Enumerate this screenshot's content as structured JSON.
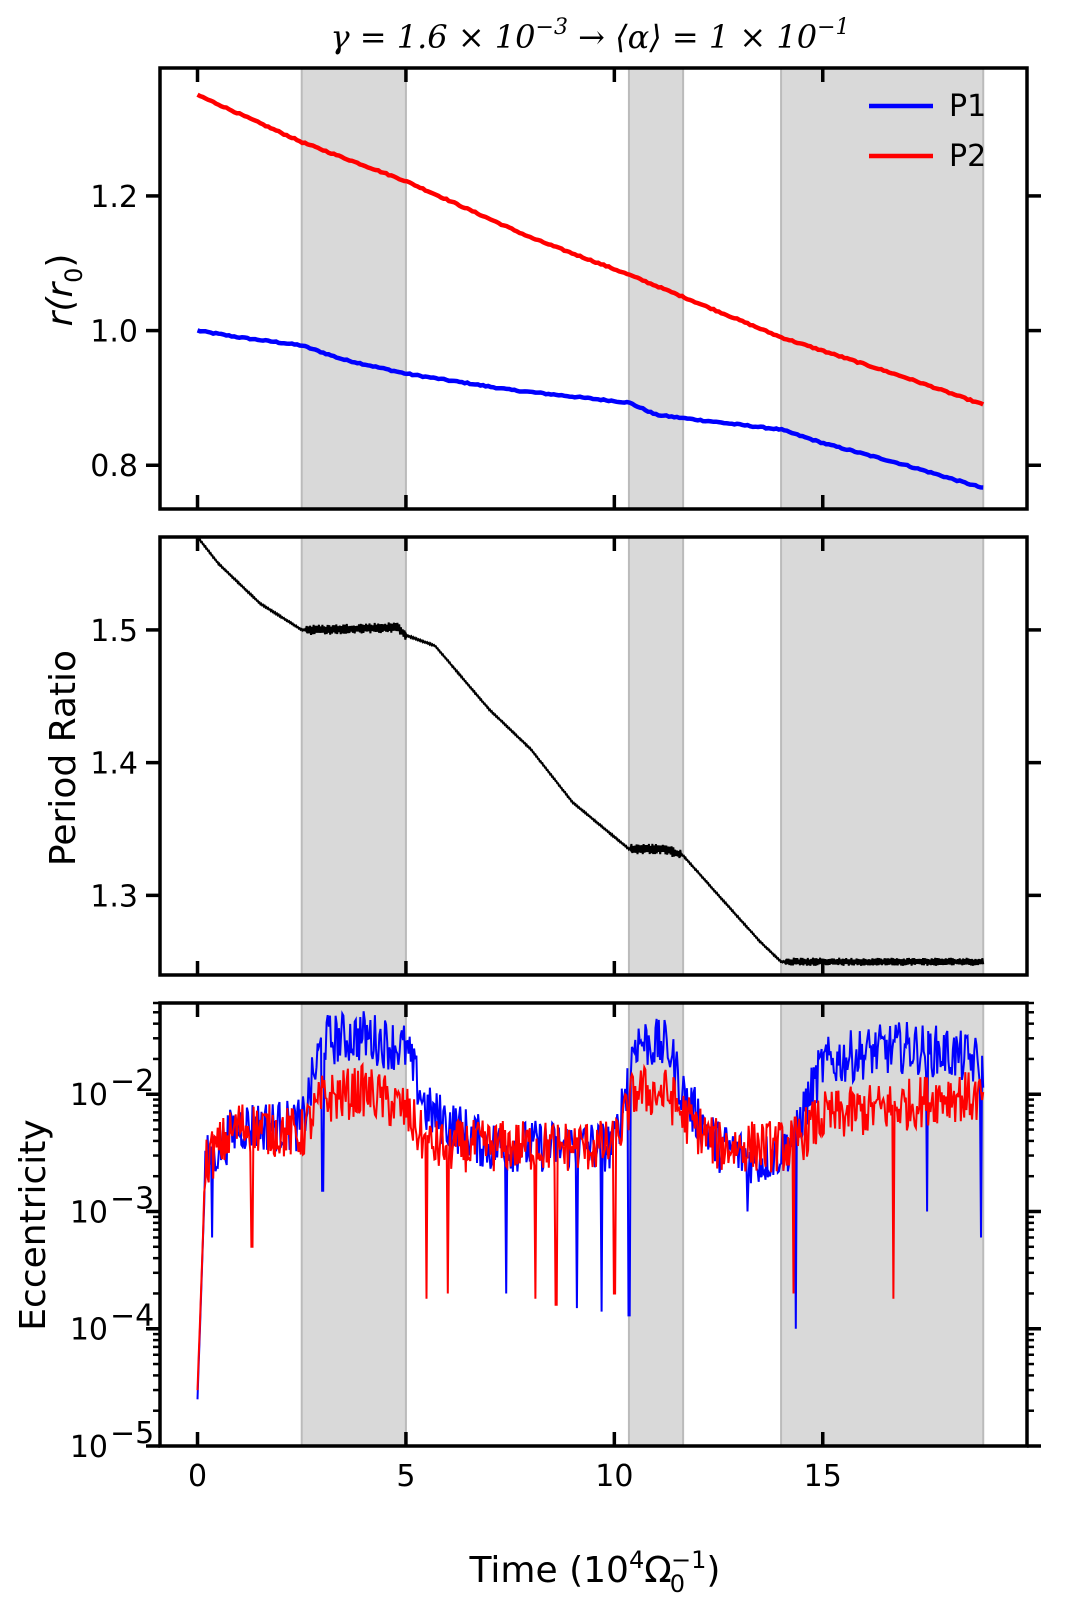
{
  "figure": {
    "title_pre": "γ = 1.6 × 10",
    "title_exp1": "−3",
    "title_mid": " → ⟨α⟩ = 1 × 10",
    "title_exp2": "−1",
    "xlabel_pre": "Time (10",
    "xlabel_sup": "4",
    "xlabel_omega": "Ω",
    "xlabel_sub": "0",
    "xlabel_sup2": "−1",
    "xlabel_post": ")"
  },
  "chart_data": [
    {
      "type": "line",
      "title": "γ = 1.6 × 10^−3 → ⟨α⟩ = 1 × 10^−1",
      "xlabel": "Time (10^4 Ω_0^−1)",
      "ylabel_pre": "r(r",
      "ylabel_sub": "0",
      "ylabel_post": ")",
      "xlim": [
        -0.9,
        19.9
      ],
      "ylim": [
        0.735,
        1.39
      ],
      "xticks": [
        0,
        5,
        10,
        15
      ],
      "yticks": [
        0.8,
        1.0,
        1.2
      ],
      "ytick_labels": [
        "0.8",
        "1.0",
        "1.2"
      ],
      "shaded_regions": [
        [
          2.5,
          5.0
        ],
        [
          10.35,
          11.65
        ],
        [
          14.0,
          18.85
        ]
      ],
      "legend": {
        "position": "top-right",
        "entries": [
          "P1",
          "P2"
        ]
      },
      "series": [
        {
          "name": "P1",
          "color": "#0000ff",
          "x": [
            0,
            1,
            2.5,
            3.5,
            5.0,
            7.5,
            10.35,
            11.0,
            11.65,
            14.0,
            15.0,
            17.0,
            18.85
          ],
          "y": [
            1.0,
            0.99,
            0.978,
            0.957,
            0.936,
            0.912,
            0.893,
            0.875,
            0.87,
            0.853,
            0.833,
            0.8,
            0.766
          ]
        },
        {
          "name": "P2",
          "color": "#ff0000",
          "x": [
            0,
            2.5,
            5.0,
            8.0,
            10.35,
            11.65,
            14.0,
            15.0,
            17.0,
            18.85
          ],
          "y": [
            1.35,
            1.28,
            1.222,
            1.138,
            1.083,
            1.05,
            0.99,
            0.97,
            0.93,
            0.89
          ]
        }
      ]
    },
    {
      "type": "line",
      "ylabel": "Period Ratio",
      "xlim": [
        -0.9,
        19.9
      ],
      "ylim": [
        1.24,
        1.57
      ],
      "xticks": [
        0,
        5,
        10,
        15
      ],
      "yticks": [
        1.3,
        1.4,
        1.5
      ],
      "ytick_labels": [
        "1.3",
        "1.4",
        "1.5"
      ],
      "shaded_regions": [
        [
          2.5,
          5.0
        ],
        [
          10.35,
          11.65
        ],
        [
          14.0,
          18.85
        ]
      ],
      "series": [
        {
          "name": "Period Ratio",
          "color": "#000000",
          "x": [
            0,
            0.5,
            1.5,
            2.5,
            3.0,
            4.8,
            5.0,
            5.7,
            7.0,
            8.0,
            9.0,
            10.35,
            11.2,
            11.65,
            12.5,
            13.5,
            14.0,
            18.85
          ],
          "y": [
            1.57,
            1.55,
            1.52,
            1.5,
            1.5,
            1.502,
            1.496,
            1.488,
            1.44,
            1.41,
            1.37,
            1.335,
            1.335,
            1.33,
            1.3,
            1.265,
            1.25,
            1.25
          ],
          "oscillation_ranges": [
            [
              2.6,
              5.0,
              0.004
            ],
            [
              10.4,
              11.6,
              0.004
            ],
            [
              14.1,
              18.85,
              0.003
            ]
          ]
        }
      ]
    },
    {
      "type": "line",
      "ylabel": "Eccentricity",
      "yscale": "log",
      "xlim": [
        -0.9,
        19.9
      ],
      "ylim": [
        1e-05,
        0.06
      ],
      "xticks": [
        0,
        5,
        10,
        15
      ],
      "xtick_labels": [
        "0",
        "5",
        "10",
        "15"
      ],
      "yticks": [
        1e-05,
        0.0001,
        0.001,
        0.01
      ],
      "ytick_base": "10",
      "ytick_exps": [
        "−5",
        "−4",
        "−3",
        "−2"
      ],
      "shaded_regions": [
        [
          2.5,
          5.0
        ],
        [
          10.35,
          11.65
        ],
        [
          14.0,
          18.85
        ]
      ],
      "series": [
        {
          "name": "P1",
          "color": "#0000ff",
          "x": [
            0,
            0.2,
            1.0,
            2.5,
            3.0,
            4.0,
            5.0,
            5.5,
            7.0,
            8.5,
            10.0,
            10.5,
            11.3,
            11.7,
            12.5,
            13.5,
            14.2,
            15.0,
            16.0,
            17.0,
            18.0,
            18.85
          ],
          "y": [
            2.5e-05,
            0.003,
            0.006,
            0.006,
            0.032,
            0.035,
            0.027,
            0.008,
            0.004,
            0.004,
            0.004,
            0.032,
            0.028,
            0.01,
            0.004,
            0.003,
            0.004,
            0.02,
            0.025,
            0.028,
            0.025,
            0.02
          ],
          "dips": [
            [
              0.35,
              0.0006
            ],
            [
              3.0,
              0.0015
            ],
            [
              7.4,
              0.0002
            ],
            [
              9.1,
              0.00015
            ],
            [
              9.7,
              0.00014
            ],
            [
              10.35,
              0.00013
            ],
            [
              13.2,
              0.001
            ],
            [
              14.35,
              0.0001
            ],
            [
              17.5,
              0.001
            ],
            [
              18.8,
              0.0006
            ]
          ]
        },
        {
          "name": "P2",
          "color": "#ff0000",
          "x": [
            0,
            0.2,
            1.0,
            2.5,
            3.0,
            4.0,
            5.0,
            5.5,
            7.0,
            8.5,
            10.0,
            10.5,
            11.3,
            11.7,
            12.5,
            13.5,
            14.2,
            15.0,
            16.0,
            17.0,
            18.0,
            18.85
          ],
          "y": [
            3e-05,
            0.003,
            0.006,
            0.005,
            0.01,
            0.012,
            0.008,
            0.004,
            0.004,
            0.004,
            0.004,
            0.012,
            0.011,
            0.007,
            0.004,
            0.004,
            0.004,
            0.007,
            0.008,
            0.009,
            0.011,
            0.01
          ],
          "dips": [
            [
              1.3,
              0.0005
            ],
            [
              5.5,
              0.00018
            ],
            [
              6.0,
              0.0002
            ],
            [
              8.1,
              0.00018
            ],
            [
              8.6,
              0.00016
            ],
            [
              10.0,
              0.0002
            ],
            [
              14.3,
              0.0002
            ],
            [
              16.7,
              0.00018
            ]
          ]
        }
      ]
    }
  ]
}
